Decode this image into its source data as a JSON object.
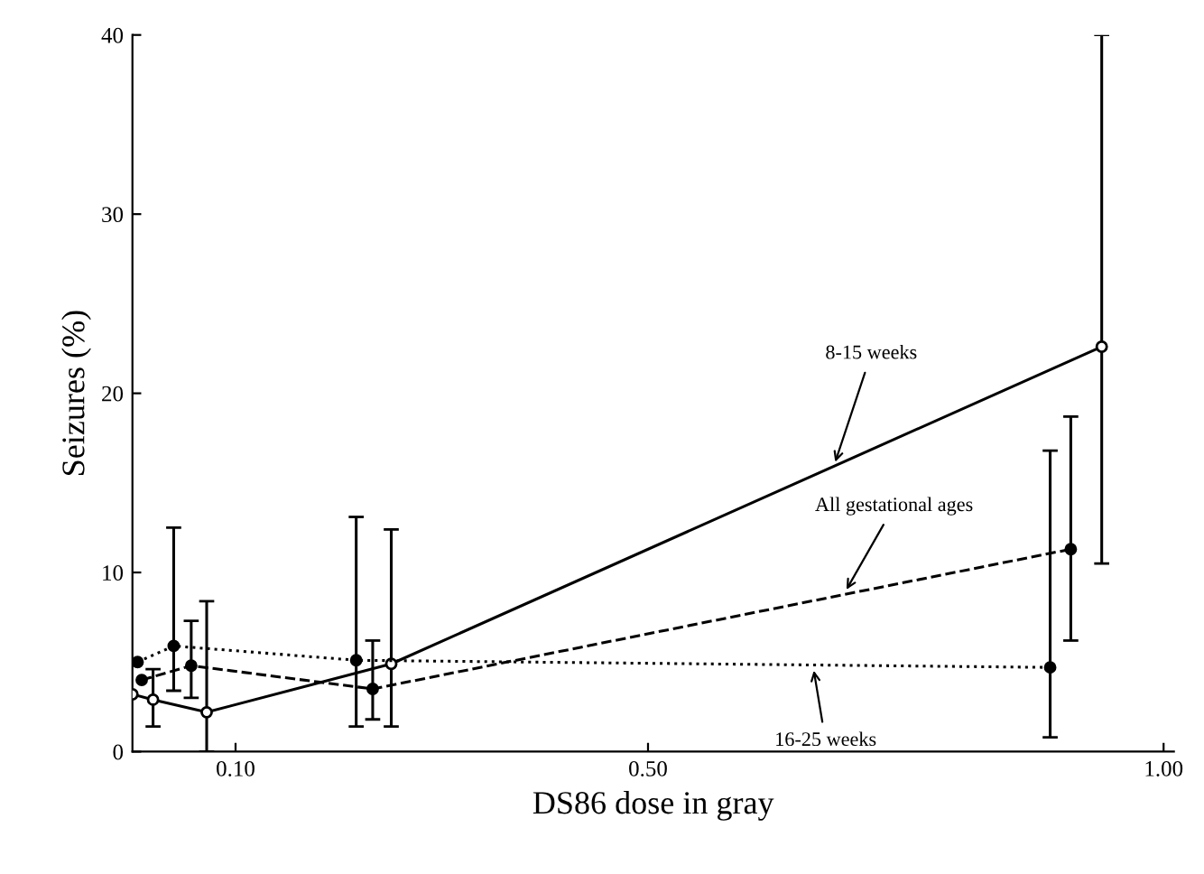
{
  "chart_data": {
    "type": "line",
    "xlabel": "DS86 dose in gray",
    "ylabel": "Seizures (%)",
    "xlim": [
      0,
      1.01
    ],
    "ylim": [
      0,
      40
    ],
    "xticks": [
      {
        "value": 0.1,
        "label": "0.10"
      },
      {
        "value": 0.5,
        "label": "0.50"
      },
      {
        "value": 1.0,
        "label": "1.00"
      }
    ],
    "yticks": [
      0,
      10,
      20,
      30,
      40
    ],
    "grid": false,
    "marker": "circle",
    "series": [
      {
        "color": "#000000",
        "line_style": "solid",
        "x": [
          0.0,
          0.02,
          0.072,
          0.251,
          0.94
        ],
        "values": [
          3.2,
          2.9,
          2.2,
          4.9,
          22.6
        ],
        "errors": [
          null,
          [
            1.4,
            4.6
          ],
          [
            0,
            8.4
          ],
          [
            1.4,
            12.4
          ],
          [
            10.5,
            40
          ]
        ]
      },
      {
        "color": "#000000",
        "line_style": "dashed",
        "x": [
          0.009,
          0.057,
          0.233,
          0.91
        ],
        "values": [
          4.0,
          4.8,
          3.5,
          11.3
        ],
        "errors": [
          null,
          [
            3.0,
            7.3
          ],
          [
            1.8,
            6.2
          ],
          [
            6.2,
            18.7
          ]
        ]
      },
      {
        "color": "#000000",
        "line_style": "dotted",
        "x": [
          0.005,
          0.04,
          0.217,
          0.89
        ],
        "values": [
          5.0,
          5.9,
          5.1,
          4.7
        ],
        "errors": [
          null,
          [
            3.4,
            12.5
          ],
          [
            1.4,
            13.1
          ],
          [
            0.8,
            16.8
          ]
        ]
      }
    ],
    "annotations": [
      {
        "text": "8-15 weeks",
        "x": 0.68,
        "y": 15.9
      },
      {
        "text": "All gestational ages",
        "x": 0.69,
        "y": 8.8
      },
      {
        "text": "16-25 weeks",
        "x": 0.66,
        "y": 4.8
      }
    ]
  }
}
